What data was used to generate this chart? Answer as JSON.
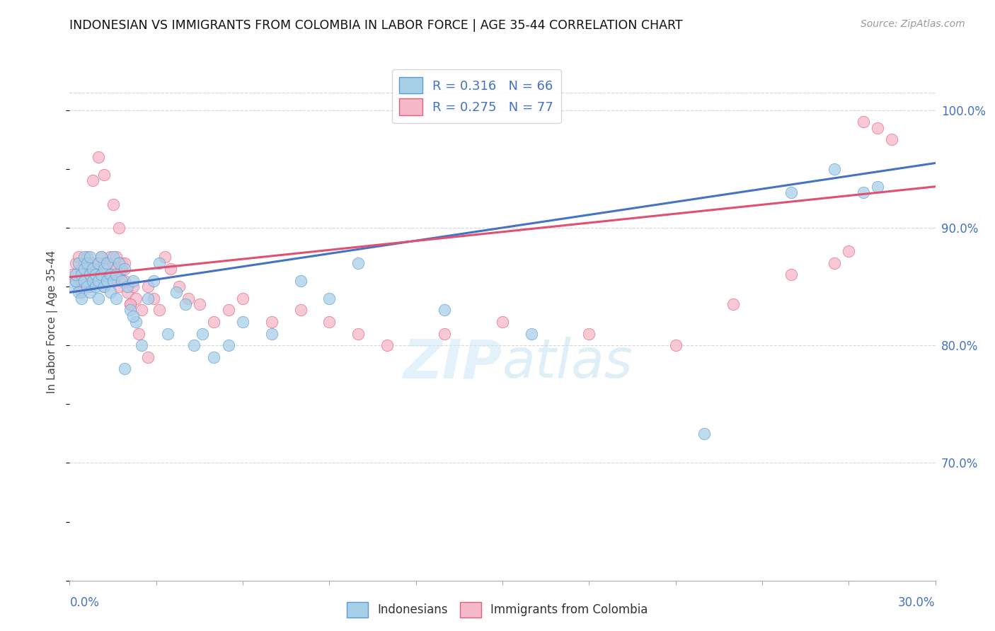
{
  "title": "INDONESIAN VS IMMIGRANTS FROM COLOMBIA IN LABOR FORCE | AGE 35-44 CORRELATION CHART",
  "source": "Source: ZipAtlas.com",
  "ylabel": "In Labor Force | Age 35-44",
  "legend_label1": "Indonesians",
  "legend_label2": "Immigrants from Colombia",
  "R1": 0.316,
  "N1": 66,
  "R2": 0.275,
  "N2": 77,
  "color_blue": "#a8cfe8",
  "color_pink": "#f4b8c8",
  "color_blue_dark": "#5b9bd5",
  "color_pink_dark": "#e06080",
  "color_line_blue": "#4472c4",
  "color_line_pink": "#e05070",
  "xlim": [
    0.0,
    0.3
  ],
  "ylim": [
    0.6,
    1.04
  ],
  "yticks": [
    0.7,
    0.8,
    0.9,
    1.0
  ],
  "ytick_labels": [
    "70.0%",
    "80.0%",
    "90.0%",
    "100.0%"
  ],
  "background_color": "#ffffff",
  "grid_color": "#d8d8d8",
  "indonesians_x": [
    0.001,
    0.002,
    0.002,
    0.003,
    0.003,
    0.004,
    0.004,
    0.005,
    0.005,
    0.005,
    0.006,
    0.006,
    0.007,
    0.007,
    0.007,
    0.008,
    0.008,
    0.009,
    0.009,
    0.01,
    0.01,
    0.01,
    0.011,
    0.011,
    0.012,
    0.012,
    0.013,
    0.013,
    0.014,
    0.014,
    0.015,
    0.015,
    0.016,
    0.016,
    0.017,
    0.018,
    0.019,
    0.02,
    0.021,
    0.022,
    0.023,
    0.025,
    0.027,
    0.029,
    0.031,
    0.034,
    0.037,
    0.04,
    0.043,
    0.046,
    0.05,
    0.055,
    0.06,
    0.07,
    0.08,
    0.09,
    0.1,
    0.13,
    0.16,
    0.22,
    0.25,
    0.265,
    0.275,
    0.28,
    0.022,
    0.019
  ],
  "indonesians_y": [
    0.85,
    0.855,
    0.86,
    0.845,
    0.87,
    0.84,
    0.86,
    0.855,
    0.865,
    0.875,
    0.85,
    0.87,
    0.845,
    0.86,
    0.875,
    0.855,
    0.865,
    0.85,
    0.86,
    0.87,
    0.855,
    0.84,
    0.875,
    0.86,
    0.85,
    0.865,
    0.855,
    0.87,
    0.845,
    0.86,
    0.875,
    0.855,
    0.86,
    0.84,
    0.87,
    0.855,
    0.865,
    0.85,
    0.83,
    0.855,
    0.82,
    0.8,
    0.84,
    0.855,
    0.87,
    0.81,
    0.845,
    0.835,
    0.8,
    0.81,
    0.79,
    0.8,
    0.82,
    0.81,
    0.855,
    0.84,
    0.87,
    0.83,
    0.81,
    0.725,
    0.93,
    0.95,
    0.93,
    0.935,
    0.825,
    0.78
  ],
  "colombia_x": [
    0.001,
    0.002,
    0.002,
    0.003,
    0.003,
    0.004,
    0.004,
    0.005,
    0.005,
    0.006,
    0.006,
    0.007,
    0.007,
    0.008,
    0.008,
    0.009,
    0.009,
    0.01,
    0.01,
    0.011,
    0.011,
    0.012,
    0.012,
    0.013,
    0.013,
    0.014,
    0.014,
    0.015,
    0.015,
    0.016,
    0.016,
    0.017,
    0.017,
    0.018,
    0.018,
    0.019,
    0.02,
    0.021,
    0.022,
    0.023,
    0.025,
    0.027,
    0.029,
    0.031,
    0.033,
    0.035,
    0.038,
    0.041,
    0.045,
    0.05,
    0.055,
    0.06,
    0.07,
    0.08,
    0.09,
    0.1,
    0.11,
    0.13,
    0.15,
    0.18,
    0.21,
    0.23,
    0.25,
    0.265,
    0.27,
    0.275,
    0.28,
    0.285,
    0.008,
    0.01,
    0.012,
    0.015,
    0.017,
    0.019,
    0.021,
    0.024,
    0.027
  ],
  "colombia_y": [
    0.86,
    0.855,
    0.87,
    0.85,
    0.875,
    0.845,
    0.865,
    0.855,
    0.87,
    0.86,
    0.875,
    0.85,
    0.86,
    0.855,
    0.87,
    0.865,
    0.855,
    0.87,
    0.86,
    0.875,
    0.86,
    0.85,
    0.87,
    0.865,
    0.855,
    0.875,
    0.86,
    0.87,
    0.855,
    0.865,
    0.875,
    0.86,
    0.85,
    0.87,
    0.865,
    0.855,
    0.845,
    0.835,
    0.85,
    0.84,
    0.83,
    0.85,
    0.84,
    0.83,
    0.875,
    0.865,
    0.85,
    0.84,
    0.835,
    0.82,
    0.83,
    0.84,
    0.82,
    0.83,
    0.82,
    0.81,
    0.8,
    0.81,
    0.82,
    0.81,
    0.8,
    0.835,
    0.86,
    0.87,
    0.88,
    0.99,
    0.985,
    0.975,
    0.94,
    0.96,
    0.945,
    0.92,
    0.9,
    0.87,
    0.835,
    0.81,
    0.79
  ]
}
